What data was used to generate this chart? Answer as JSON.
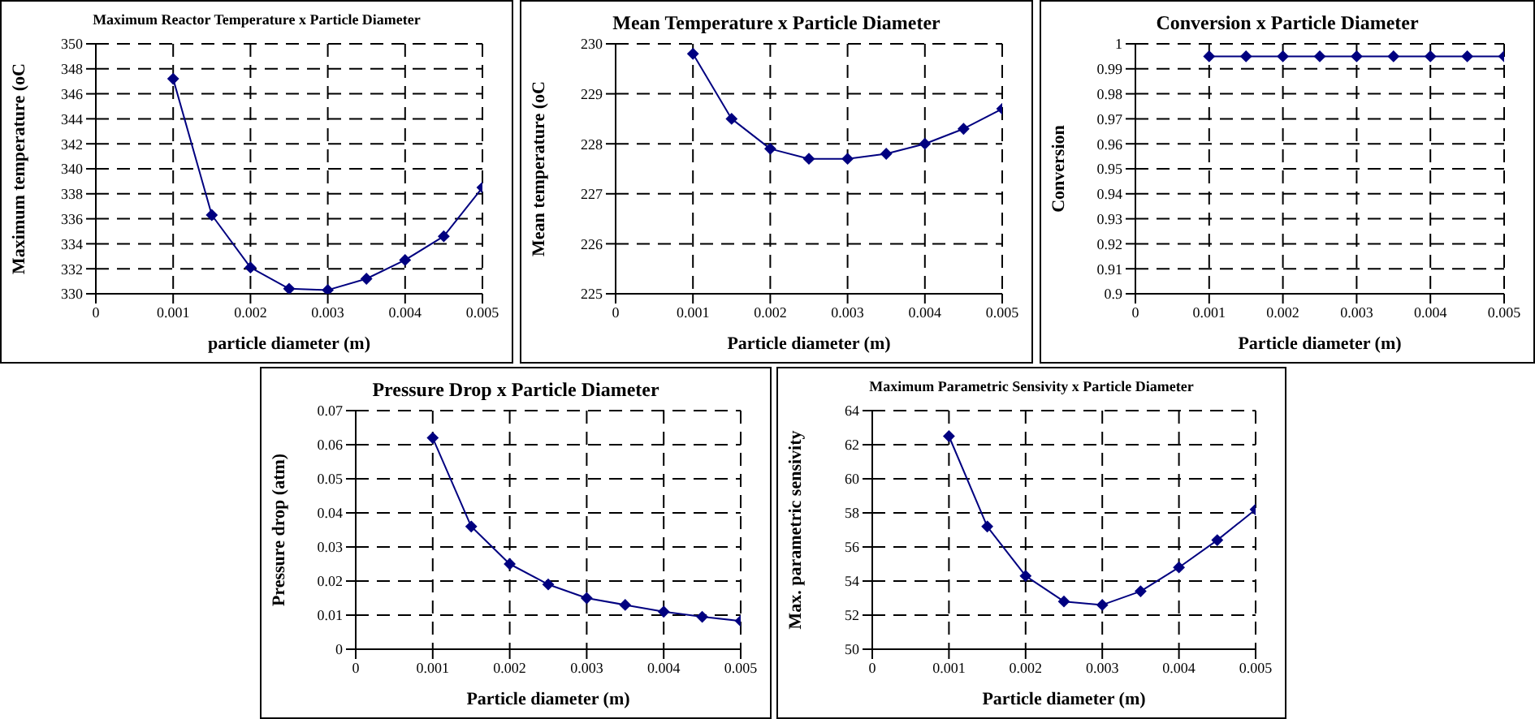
{
  "chart_data": [
    {
      "type": "line",
      "title": "Maximum Reactor Temperature x Particle Diameter",
      "xlabel": "particle diameter (m)",
      "ylabel": "Maximum temperature (oC",
      "x": [
        0.001,
        0.0015,
        0.002,
        0.0025,
        0.003,
        0.0035,
        0.004,
        0.0045,
        0.005
      ],
      "series": [
        {
          "color": "#000080",
          "values": [
            347.2,
            336.3,
            332.1,
            330.4,
            330.3,
            331.2,
            332.7,
            334.6,
            338.5
          ]
        }
      ],
      "xlim": [
        0,
        0.005
      ],
      "xticks": [
        0,
        0.001,
        0.002,
        0.003,
        0.004,
        0.005
      ],
      "ylim": [
        330,
        350
      ],
      "yticks": [
        330,
        332,
        334,
        336,
        338,
        340,
        342,
        344,
        346,
        348,
        350
      ],
      "grid": true,
      "marker": "diamond",
      "line_style": "solid",
      "legend": false
    },
    {
      "type": "line",
      "title": "Mean Temperature x Particle Diameter",
      "xlabel": "Particle diameter (m)",
      "ylabel": "Mean temperature (oC",
      "x": [
        0.001,
        0.0015,
        0.002,
        0.0025,
        0.003,
        0.0035,
        0.004,
        0.0045,
        0.005
      ],
      "series": [
        {
          "color": "#000080",
          "values": [
            229.8,
            228.5,
            227.9,
            227.7,
            227.7,
            227.8,
            228.0,
            228.3,
            228.7
          ]
        }
      ],
      "xlim": [
        0,
        0.005
      ],
      "xticks": [
        0,
        0.001,
        0.002,
        0.003,
        0.004,
        0.005
      ],
      "ylim": [
        225,
        230
      ],
      "yticks": [
        225,
        226,
        227,
        228,
        229,
        230
      ],
      "grid": true,
      "marker": "diamond",
      "line_style": "solid",
      "legend": false
    },
    {
      "type": "line",
      "title": "Conversion x Particle Diameter",
      "xlabel": "Particle diameter (m)",
      "ylabel": "Conversion",
      "x": [
        0.001,
        0.0015,
        0.002,
        0.0025,
        0.003,
        0.0035,
        0.004,
        0.0045,
        0.005
      ],
      "series": [
        {
          "color": "#000080",
          "values": [
            0.995,
            0.995,
            0.995,
            0.995,
            0.995,
            0.995,
            0.995,
            0.995,
            0.995
          ]
        }
      ],
      "xlim": [
        0,
        0.005
      ],
      "xticks": [
        0,
        0.001,
        0.002,
        0.003,
        0.004,
        0.005
      ],
      "ylim": [
        0.9,
        1
      ],
      "yticks": [
        0.9,
        0.91,
        0.92,
        0.93,
        0.94,
        0.95,
        0.96,
        0.97,
        0.98,
        0.99,
        1
      ],
      "grid": true,
      "marker": "diamond",
      "line_style": "solid",
      "legend": false
    },
    {
      "type": "line",
      "title": "Pressure Drop x Particle Diameter",
      "xlabel": "Particle diameter (m)",
      "ylabel": "Pressure drop (atm)",
      "x": [
        0.001,
        0.0015,
        0.002,
        0.0025,
        0.003,
        0.0035,
        0.004,
        0.0045,
        0.005
      ],
      "series": [
        {
          "color": "#000080",
          "values": [
            0.062,
            0.036,
            0.025,
            0.019,
            0.015,
            0.013,
            0.011,
            0.0095,
            0.0083
          ]
        }
      ],
      "xlim": [
        0,
        0.005
      ],
      "xticks": [
        0,
        0.001,
        0.002,
        0.003,
        0.004,
        0.005
      ],
      "ylim": [
        0,
        0.07
      ],
      "yticks": [
        0,
        0.01,
        0.02,
        0.03,
        0.04,
        0.05,
        0.06,
        0.07
      ],
      "grid": true,
      "marker": "diamond",
      "line_style": "solid",
      "legend": false
    },
    {
      "type": "line",
      "title": "Maximum Parametric Sensivity x Particle Diameter",
      "xlabel": "Particle diameter (m)",
      "ylabel": "Max. parametric sensivity",
      "x": [
        0.001,
        0.0015,
        0.002,
        0.0025,
        0.003,
        0.0035,
        0.004,
        0.0045,
        0.005
      ],
      "series": [
        {
          "color": "#000080",
          "values": [
            62.5,
            57.2,
            54.3,
            52.8,
            52.6,
            53.4,
            54.8,
            56.4,
            58.2
          ]
        }
      ],
      "xlim": [
        0,
        0.005
      ],
      "xticks": [
        0,
        0.001,
        0.002,
        0.003,
        0.004,
        0.005
      ],
      "ylim": [
        50,
        64
      ],
      "yticks": [
        50,
        52,
        54,
        56,
        58,
        60,
        62,
        64
      ],
      "grid": true,
      "marker": "diamond",
      "line_style": "solid",
      "legend": false
    }
  ]
}
